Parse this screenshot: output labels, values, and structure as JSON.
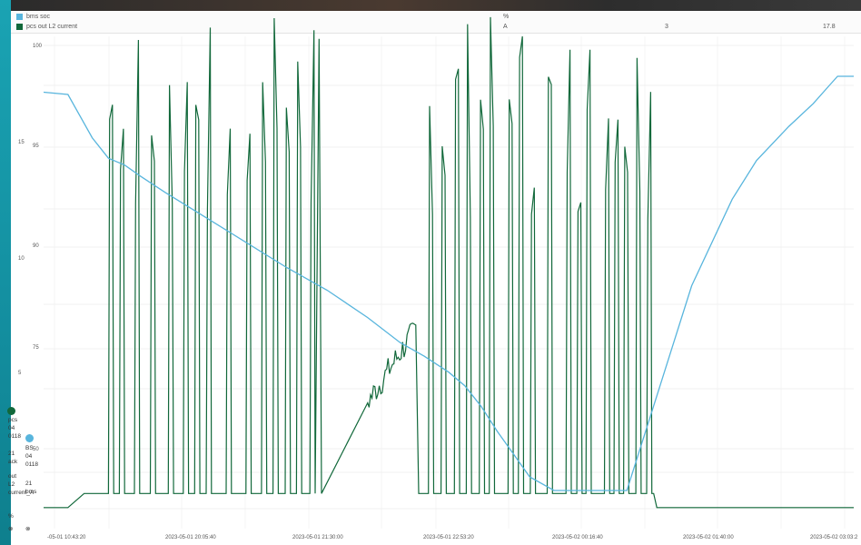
{
  "legend": [
    {
      "name": "bms soc",
      "unit": "%",
      "value1": "",
      "value2": "",
      "color": "#58b5dd"
    },
    {
      "name": "pcs out L2 current",
      "unit": "A",
      "value1": "3",
      "value2": "17.8",
      "color": "#11683a"
    }
  ],
  "chart_data": {
    "type": "line",
    "title": "",
    "xlabel": "",
    "left_axis": {
      "ticks": [
        "5",
        "10",
        "15"
      ],
      "range": [
        3,
        17
      ]
    },
    "right_axis": {
      "ticks": [
        "50",
        "75",
        "90",
        "95",
        "100"
      ]
    },
    "x_ticks": [
      "-05-01 10:43:20",
      "2023-05-01 20:05:40",
      "2023-05-01 21:30:00",
      "2023-05-01 22:53:20",
      "2023-05-02 00:16:40",
      "2023-05-02 01:40:00",
      "2023-05-02 03:03:2"
    ],
    "grid": true,
    "series": [
      {
        "name": "bms soc",
        "color": "#58b5dd",
        "x": [
          0,
          3,
          6,
          8,
          10,
          12,
          15,
          20,
          25,
          30,
          35,
          40,
          44,
          47,
          50,
          52,
          54,
          56,
          58,
          60,
          63,
          67,
          72,
          76,
          80,
          85,
          88,
          92,
          95,
          97,
          98,
          100
        ],
        "y": [
          97.5,
          97.4,
          95.5,
          94.6,
          94.3,
          93.8,
          93.1,
          92.0,
          90.9,
          89.8,
          88.8,
          87.6,
          86.5,
          85.9,
          85.2,
          84.6,
          83.7,
          82.6,
          81.6,
          80.6,
          80.0,
          80.0,
          80.0,
          84.5,
          89.0,
          92.8,
          94.5,
          96.0,
          97.0,
          97.8,
          98.2,
          98.2
        ]
      },
      {
        "name": "pcs out L2 current",
        "color": "#11683a",
        "pattern": "on-off bursts",
        "off_level": 4.0,
        "on_peak_range": [
          11.8,
          17.6
        ],
        "x_burst_start": [
          8,
          33
        ],
        "ramp_region": [
          40,
          46
        ],
        "x_burst_second": [
          47.5,
          74.5
        ],
        "final_level": 3.6
      }
    ]
  },
  "left_panel": {
    "marker1_lines": [
      "pcs",
      "04",
      "0118",
      "21",
      "ack",
      "out",
      "L2",
      "current_A",
      "%"
    ],
    "marker2_lines": [
      "BS",
      "04",
      "0118",
      "21",
      "bms"
    ],
    "bottom_glyph": "⊗",
    "dot1_color": "#11683a",
    "dot2_color": "#58b5dd"
  }
}
